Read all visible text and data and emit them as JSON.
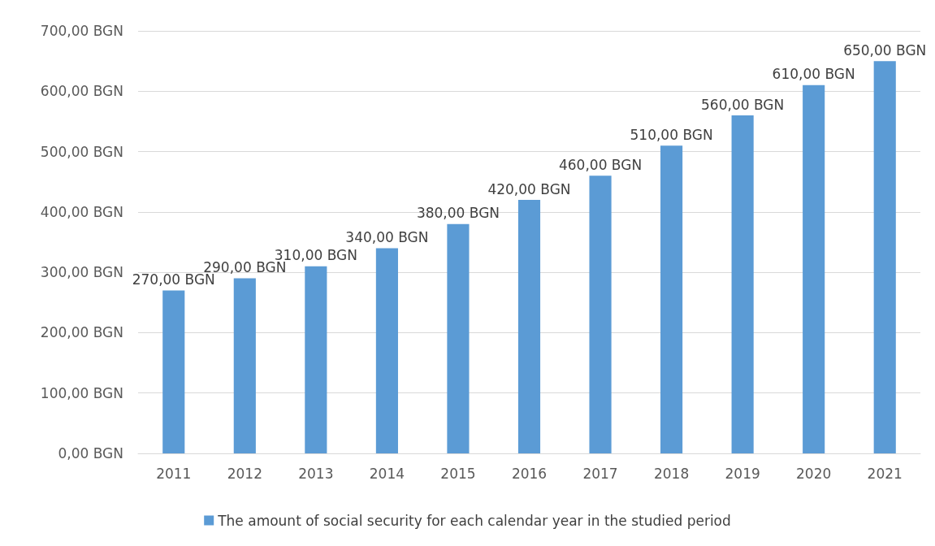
{
  "chart_data": {
    "type": "bar",
    "categories": [
      "2011",
      "2012",
      "2013",
      "2014",
      "2015",
      "2016",
      "2017",
      "2018",
      "2019",
      "2020",
      "2021"
    ],
    "series": [
      {
        "name": "The amount of social security for each calendar year in the studied period",
        "color": "#5b9bd5",
        "values": [
          270,
          290,
          310,
          340,
          380,
          420,
          460,
          510,
          560,
          610,
          650
        ],
        "value_labels": [
          "270,00 BGN",
          "290,00 BGN",
          "310,00 BGN",
          "340,00 BGN",
          "380,00 BGN",
          "420,00 BGN",
          "460,00 BGN",
          "510,00 BGN",
          "560,00 BGN",
          "610,00 BGN",
          "650,00 BGN"
        ]
      }
    ],
    "ylim": [
      0,
      700
    ],
    "yticks": [
      {
        "value": 0,
        "label": "0,00 BGN"
      },
      {
        "value": 100,
        "label": "100,00 BGN"
      },
      {
        "value": 200,
        "label": "200,00 BGN"
      },
      {
        "value": 300,
        "label": "300,00 BGN"
      },
      {
        "value": 400,
        "label": "400,00 BGN"
      },
      {
        "value": 500,
        "label": "500,00 BGN"
      },
      {
        "value": 600,
        "label": "600,00 BGN"
      },
      {
        "value": 700,
        "label": "700,00 BGN"
      }
    ],
    "grid": "y",
    "legend": "bottom"
  }
}
